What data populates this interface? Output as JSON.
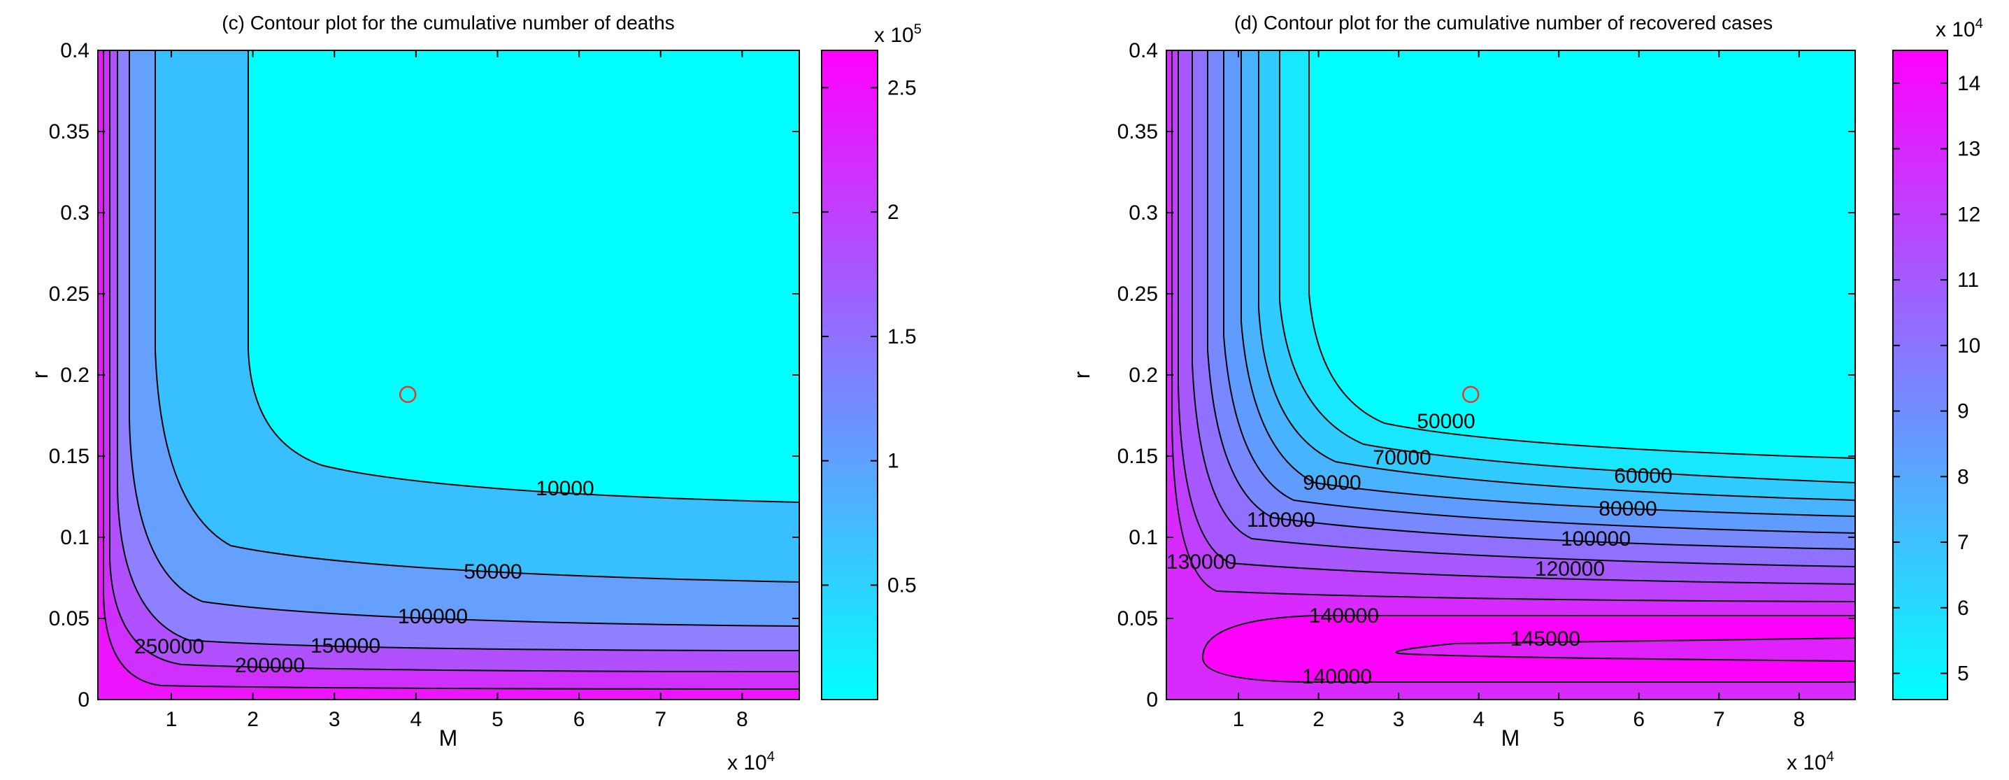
{
  "chart_data": [
    {
      "type": "contour",
      "title": "(c) Contour plot for the cumulative number of deaths",
      "xlabel": "M",
      "ylabel": "r",
      "xlim": [
        0.1,
        8.7
      ],
      "ylim": [
        0,
        0.4
      ],
      "xticks": [
        "1",
        "2",
        "3",
        "4",
        "5",
        "6",
        "7",
        "8"
      ],
      "x_exponent": {
        "base": "x 10",
        "power": "4"
      },
      "yticks": [
        "0",
        "0.05",
        "0.1",
        "0.15",
        "0.2",
        "0.25",
        "0.3",
        "0.35",
        "0.4"
      ],
      "colorbar": {
        "range": [
          0.04,
          2.65
        ],
        "ticks": [
          "0.5",
          "1",
          "1.5",
          "2",
          "2.5"
        ],
        "exponent": {
          "base": "x 10",
          "power": "5"
        },
        "colors": [
          "#00ffff",
          "#ff00ff"
        ]
      },
      "level_labels": [
        "10000",
        "50000",
        "100000",
        "150000",
        "200000",
        "250000"
      ],
      "marker": {
        "M": 3.9,
        "r": 0.188,
        "symbol": "circle",
        "color": "#e53b2a"
      }
    },
    {
      "type": "contour",
      "title": "(d) Contour plot for the cumulative number of recovered cases",
      "xlabel": "M",
      "ylabel": "r",
      "xlim": [
        0.1,
        8.7
      ],
      "ylim": [
        0,
        0.4
      ],
      "xticks": [
        "1",
        "2",
        "3",
        "4",
        "5",
        "6",
        "7",
        "8"
      ],
      "x_exponent": {
        "base": "x 10",
        "power": "4"
      },
      "yticks": [
        "0",
        "0.05",
        "0.1",
        "0.15",
        "0.2",
        "0.25",
        "0.3",
        "0.35",
        "0.4"
      ],
      "colorbar": {
        "range": [
          4.6,
          14.5
        ],
        "ticks": [
          "5",
          "6",
          "7",
          "8",
          "9",
          "10",
          "11",
          "12",
          "13",
          "14"
        ],
        "exponent": {
          "base": "x 10",
          "power": "4"
        },
        "colors": [
          "#00ffff",
          "#ff00ff"
        ]
      },
      "level_labels": [
        "50000",
        "60000",
        "70000",
        "80000",
        "90000",
        "100000",
        "110000",
        "120000",
        "130000",
        "140000",
        "145000",
        "140000"
      ],
      "marker": {
        "M": 3.9,
        "r": 0.188,
        "symbol": "circle",
        "color": "#e53b2a"
      }
    }
  ]
}
